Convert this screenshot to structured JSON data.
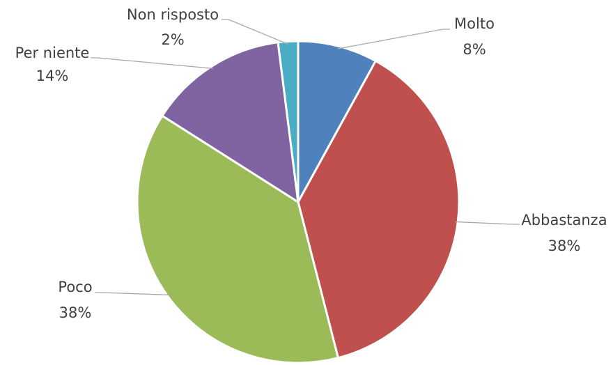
{
  "chart_data": {
    "type": "pie",
    "categories": [
      "Molto",
      "Abbastanza",
      "Poco",
      "Per niente",
      "Non risposto"
    ],
    "values": [
      8,
      38,
      38,
      14,
      2
    ],
    "value_labels": [
      "8%",
      "38%",
      "38%",
      "14%",
      "2%"
    ],
    "colors": [
      "#4f81bd",
      "#c0504d",
      "#9bbb59",
      "#8064a2",
      "#4bacc6"
    ]
  }
}
